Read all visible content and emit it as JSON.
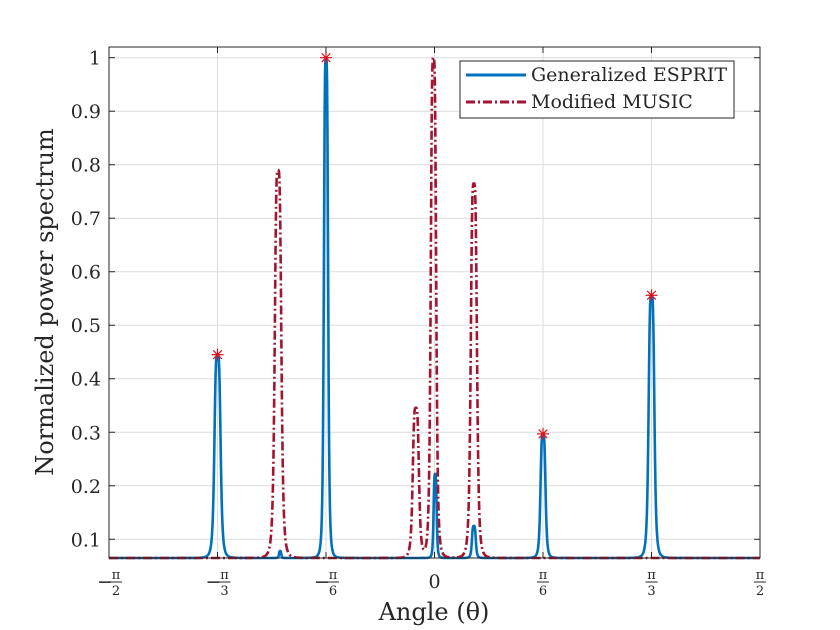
{
  "chart_data": {
    "type": "line",
    "title": "",
    "xlabel": "Angle (θ)",
    "ylabel": "Normalized power spectrum",
    "xlim": [
      -1.5708,
      1.5708
    ],
    "ylim": [
      0.065,
      1.02
    ],
    "grid": true,
    "legend_position": "top-right",
    "x_ticks": [
      {
        "value": -1.5708,
        "sign": "−",
        "num": "π",
        "den": "2"
      },
      {
        "value": -1.0472,
        "sign": "−",
        "num": "π",
        "den": "3"
      },
      {
        "value": -0.5236,
        "sign": "−",
        "num": "π",
        "den": "6"
      },
      {
        "value": 0,
        "sign": "",
        "num": "0",
        "den": ""
      },
      {
        "value": 0.5236,
        "sign": "",
        "num": "π",
        "den": "6"
      },
      {
        "value": 1.0472,
        "sign": "",
        "num": "π",
        "den": "3"
      },
      {
        "value": 1.5708,
        "sign": "",
        "num": "π",
        "den": "2"
      }
    ],
    "y_ticks": [
      "0.1",
      "0.2",
      "0.3",
      "0.4",
      "0.5",
      "0.6",
      "0.7",
      "0.8",
      "0.9",
      "1"
    ],
    "series": [
      {
        "name": "Generalized ESPRIT",
        "color": "#0072bd",
        "style": "solid",
        "baseline": 0.065,
        "peaks": [
          {
            "center": -1.0472,
            "height": 0.445,
            "width": 0.016
          },
          {
            "center": -0.745,
            "height": 0.078,
            "width": 0.006
          },
          {
            "center": -0.5236,
            "height": 1.0,
            "width": 0.011
          },
          {
            "center": 0.003,
            "height": 0.222,
            "width": 0.008
          },
          {
            "center": 0.19,
            "height": 0.125,
            "width": 0.01
          },
          {
            "center": 0.5236,
            "height": 0.297,
            "width": 0.013
          },
          {
            "center": 1.0472,
            "height": 0.556,
            "width": 0.015
          }
        ]
      },
      {
        "name": "Modified MUSIC",
        "color": "#a2142f",
        "style": "dashdot",
        "baseline": 0.065,
        "peaks": [
          {
            "center": -0.755,
            "height": 0.79,
            "width": 0.017
          },
          {
            "center": -0.09,
            "height": 0.345,
            "width": 0.016
          },
          {
            "center": -0.005,
            "height": 1.0,
            "width": 0.014
          },
          {
            "center": 0.19,
            "height": 0.765,
            "width": 0.016
          }
        ]
      }
    ],
    "markers": {
      "symbol": "*",
      "color": "#e0101a",
      "points": [
        {
          "x": -1.0472,
          "y": 0.445
        },
        {
          "x": -0.5236,
          "y": 1.0
        },
        {
          "x": 0.5236,
          "y": 0.297
        },
        {
          "x": 1.0472,
          "y": 0.556
        }
      ]
    }
  }
}
